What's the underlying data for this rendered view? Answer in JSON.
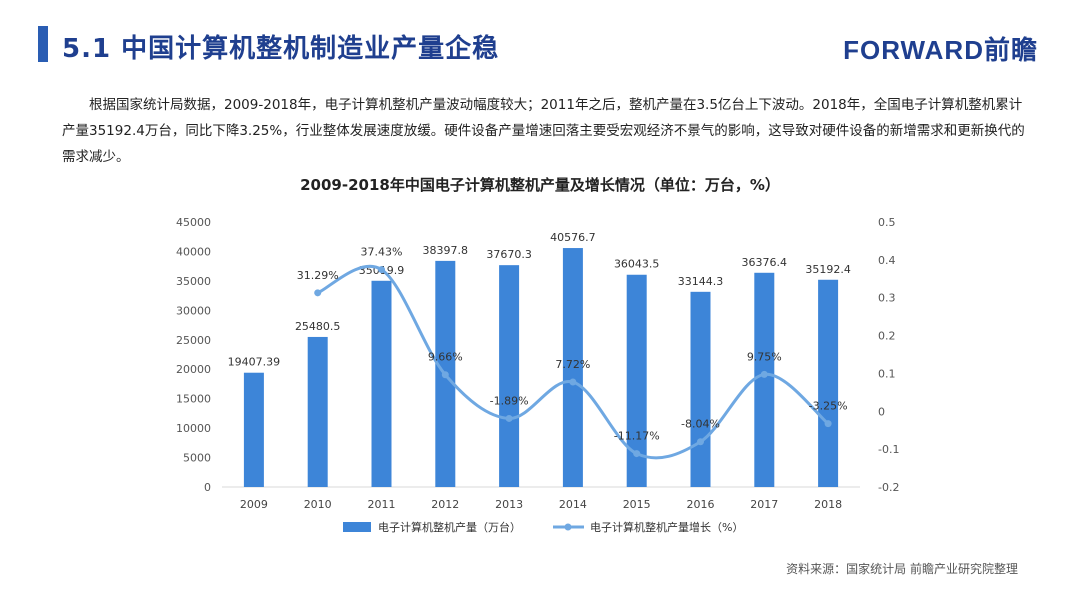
{
  "header": {
    "section_title": "5.1 中国计算机整机制造业产量企稳",
    "logo": "FORWARD前瞻"
  },
  "description": "根据国家统计局数据，2009-2018年，电子计算机整机产量波动幅度较大；2011年之后，整机产量在3.5亿台上下波动。2018年，全国电子计算机整机累计产量35192.4万台，同比下降3.25%，行业整体发展速度放缓。硬件设备产量增速回落主要受宏观经济不景气的影响，这导致对硬件设备的新增需求和更新换代的需求减少。",
  "source": "资料来源：国家统计局 前瞻产业研究院整理",
  "colors": {
    "bar": "#3d85d8",
    "line": "#6fa8e2",
    "title": "#1f3f8f"
  },
  "chart_data": {
    "type": "bar",
    "title": "2009-2018年中国电子计算机整机产量及增长情况（单位：万台，%）",
    "categories": [
      "2009",
      "2010",
      "2011",
      "2012",
      "2013",
      "2014",
      "2015",
      "2016",
      "2017",
      "2018"
    ],
    "series": [
      {
        "name": "电子计算机整机产量（万台）",
        "type": "bar",
        "axis": "left",
        "values": [
          19407.39,
          25480.5,
          35019.9,
          38397.8,
          37670.3,
          40576.7,
          36043.5,
          33144.3,
          36376.4,
          35192.4
        ],
        "labels": [
          "19407.39",
          "25480.5",
          "35019.9",
          "38397.8",
          "37670.3",
          "40576.7",
          "36043.5",
          "33144.3",
          "36376.4",
          "35192.4"
        ]
      },
      {
        "name": "电子计算机整机产量增长（%）",
        "type": "line",
        "axis": "right",
        "values": [
          null,
          0.3129,
          0.3743,
          0.0966,
          -0.0189,
          0.0772,
          -0.1117,
          -0.0804,
          0.0975,
          -0.0325
        ],
        "labels": [
          "",
          "31.29%",
          "37.43%",
          "9.66%",
          "-1.89%",
          "7.72%",
          "-11.17%",
          "-8.04%",
          "9.75%",
          "-3.25%"
        ]
      }
    ],
    "ylim_left": [
      0,
      45000
    ],
    "yticks_left": [
      "0",
      "5000",
      "10000",
      "15000",
      "20000",
      "25000",
      "30000",
      "35000",
      "40000",
      "45000"
    ],
    "ylim_right": [
      -0.2,
      0.5
    ],
    "yticks_right": [
      "-0.2",
      "-0.1",
      "0",
      "0.1",
      "0.2",
      "0.3",
      "0.4",
      "0.5"
    ],
    "legend_position": "bottom"
  }
}
